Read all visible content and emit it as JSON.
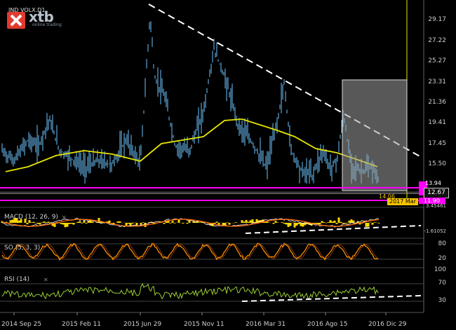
{
  "symbol_label": "VOLX.D1",
  "symbol_prefix": "IND",
  "brand": {
    "logo_text": "xtb",
    "tagline": "online trading",
    "accent": "#e23a2e"
  },
  "price_axis": [
    "29.17",
    "27.22",
    "25.27",
    "23.31",
    "21.36",
    "19.41",
    "17.45",
    "15.50",
    "12.67"
  ],
  "current_price": "12.67",
  "marker_value": "2017 Mar",
  "magenta_labels": {
    "upper": "13.94",
    "lower": "11.90",
    "mid": "14.06"
  },
  "macd": {
    "label": "MACD (12, 26, 9)",
    "max": "3.45461",
    "min": "-1.61052"
  },
  "stoch": {
    "label": "SO (5, 3, 3)",
    "levels": [
      "80",
      "20"
    ]
  },
  "rsi": {
    "label": "RSI (14)",
    "top": "100",
    "levels": [
      "70",
      "30"
    ]
  },
  "time_axis": [
    "2014 Sep 25",
    "2015 Feb 11",
    "2015 Jun 29",
    "2015 Nov 11",
    "2016 Mar 31",
    "2016 Ago 15",
    "2016 Dic 29"
  ],
  "colors": {
    "price_line": "#6ec6ff",
    "ma": "#e6e600",
    "trend": "#ffffff",
    "macd_fill": "#ffd700",
    "macd_signal": "#ff6a00",
    "stoch": "#ff8c00",
    "rsi": "#9acd32",
    "magenta": "#ff00ff"
  }
}
